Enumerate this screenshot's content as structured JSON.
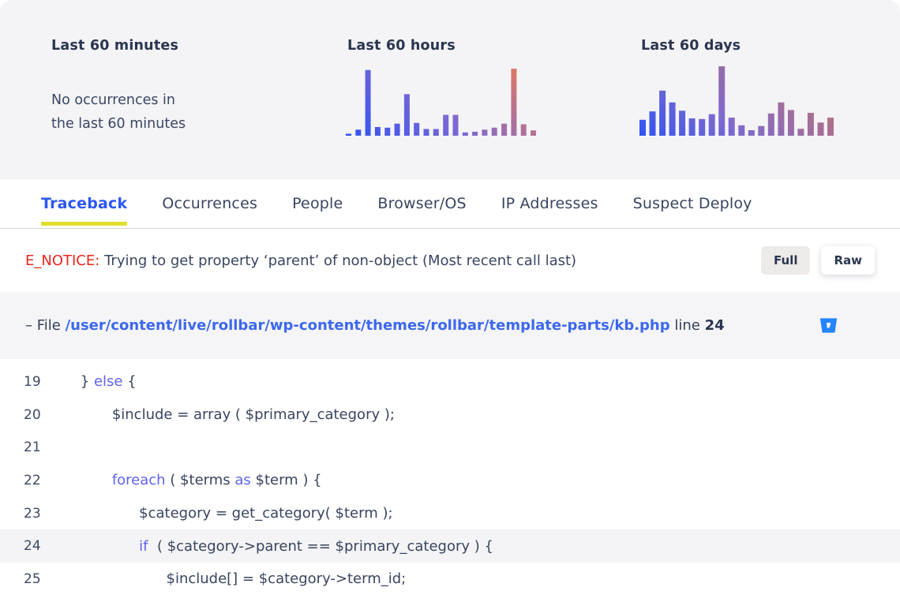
{
  "summary": {
    "minutes": {
      "title": "Last 60 minutes",
      "empty_line1": "No occurrences in",
      "empty_line2": "the last 60 minutes"
    },
    "hours": {
      "title": "Last 60 hours"
    },
    "days": {
      "title": "Last 60 days"
    }
  },
  "chart_data": [
    {
      "type": "bar",
      "title": "Last 60 hours",
      "values": [
        3,
        9,
        98,
        13,
        12,
        18,
        62,
        19,
        10,
        10,
        31,
        31,
        5,
        6,
        9,
        12,
        18,
        100,
        17,
        8
      ],
      "ylim": [
        0,
        100
      ],
      "grid": false,
      "legend": "none",
      "gradient": [
        {
          "offset": 0,
          "color": "#2e52f2"
        },
        {
          "offset": 0.3,
          "color": "#7b68d4"
        },
        {
          "offset": 0.62,
          "color": "#e87a5c"
        }
      ]
    },
    {
      "type": "bar",
      "title": "Last 60 days",
      "values": [
        23,
        35,
        65,
        48,
        36,
        25,
        24,
        31,
        100,
        26,
        15,
        8,
        14,
        32,
        48,
        37,
        10,
        33,
        19,
        26
      ],
      "ylim": [
        0,
        100
      ],
      "grid": false,
      "legend": "none",
      "gradient": [
        {
          "offset": 0,
          "color": "#2e52f2"
        },
        {
          "offset": 0.24,
          "color": "#7e6ace"
        },
        {
          "offset": 0.52,
          "color": "#b27083"
        }
      ]
    }
  ],
  "tabs": [
    {
      "label": "Traceback",
      "active": true
    },
    {
      "label": "Occurrences",
      "active": false
    },
    {
      "label": "People",
      "active": false
    },
    {
      "label": "Browser/OS",
      "active": false
    },
    {
      "label": "IP Addresses",
      "active": false
    },
    {
      "label": "Suspect Deploy",
      "active": false
    }
  ],
  "error": {
    "level": "E_NOTICE:",
    "message": "Trying to get property ‘parent’ of non-object (Most recent call last)",
    "full_label": "Full",
    "raw_label": "Raw"
  },
  "file": {
    "prefix": "– File",
    "path": "/user/content/live/rollbar/wp-content/themes/rollbar/template-parts/kb.php",
    "line_label": "line",
    "line_number": "24",
    "icon": "bitbucket-icon"
  },
  "code": {
    "highlight_line": 24,
    "lines": [
      {
        "number": 19,
        "segments": [
          {
            "text": "        } ",
            "type": "plain"
          },
          {
            "text": "else",
            "type": "keyword"
          },
          {
            "text": " {",
            "type": "plain"
          }
        ]
      },
      {
        "number": 20,
        "segments": [
          {
            "text": "               $include = array ( $primary_category );",
            "type": "plain"
          }
        ]
      },
      {
        "number": 21,
        "segments": [
          {
            "text": "",
            "type": "plain"
          }
        ]
      },
      {
        "number": 22,
        "segments": [
          {
            "text": "               ",
            "type": "plain"
          },
          {
            "text": "foreach",
            "type": "keyword"
          },
          {
            "text": " ( $terms ",
            "type": "plain"
          },
          {
            "text": "as",
            "type": "keyword"
          },
          {
            "text": " $term ) {",
            "type": "plain"
          }
        ]
      },
      {
        "number": 23,
        "segments": [
          {
            "text": "                     $category = get_category( $term );",
            "type": "plain"
          }
        ]
      },
      {
        "number": 24,
        "segments": [
          {
            "text": "                     ",
            "type": "plain"
          },
          {
            "text": "if",
            "type": "keyword"
          },
          {
            "text": "  ( $category->parent == $primary_category ) {",
            "type": "plain"
          }
        ]
      },
      {
        "number": 25,
        "segments": [
          {
            "text": "                           $include[] = $category->term_id;",
            "type": "plain"
          }
        ]
      }
    ]
  },
  "colors": {
    "panel_bg": "#f4f4f6",
    "active_tab_blue": "#2b57f0",
    "tab_underline_yellow": "#dfe02e",
    "error_red": "#e5271c",
    "link_blue": "#3c68ee",
    "keyword_indigo": "#5f63ee",
    "bitbucket_blue": "#2684FF",
    "highlight_row_bg": "#f4f4f6"
  }
}
